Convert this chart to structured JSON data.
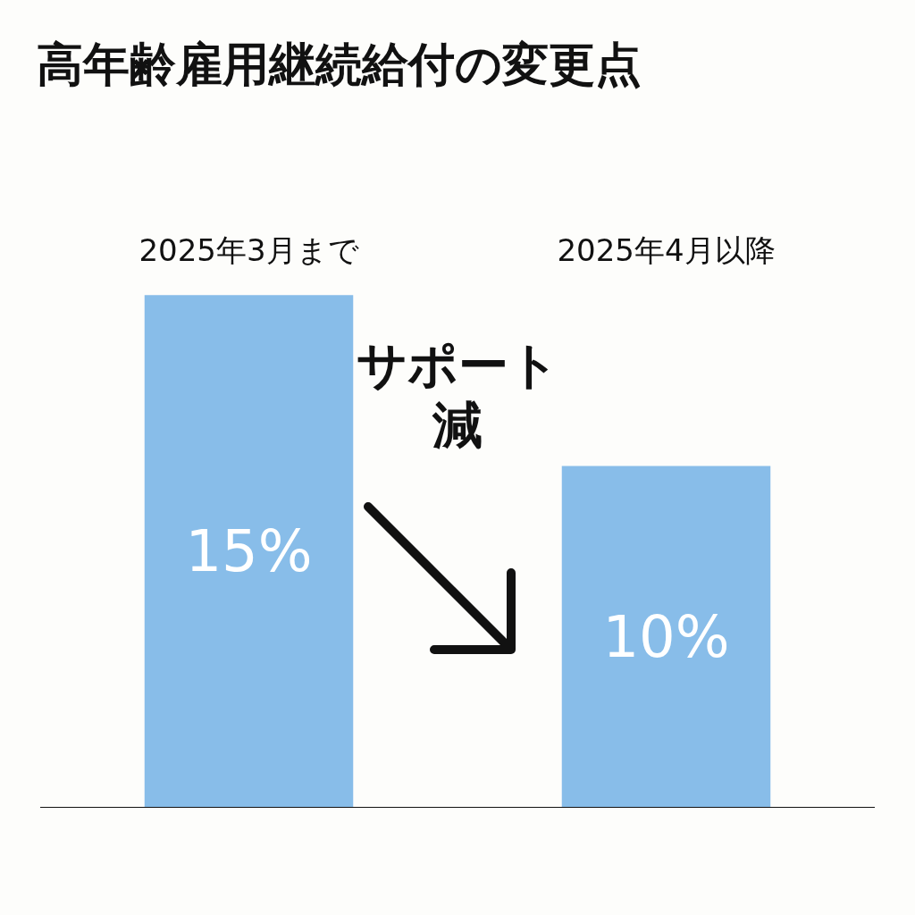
{
  "chart_data": {
    "type": "bar",
    "title": "高年齢雇用継続給付の変更点",
    "categories": [
      "2025年3月まで",
      "2025年4月以降"
    ],
    "values": [
      15,
      10
    ],
    "value_labels": [
      "15%",
      "10%"
    ],
    "color": "#88bde9",
    "annotations": [
      "サポート減"
    ]
  }
}
